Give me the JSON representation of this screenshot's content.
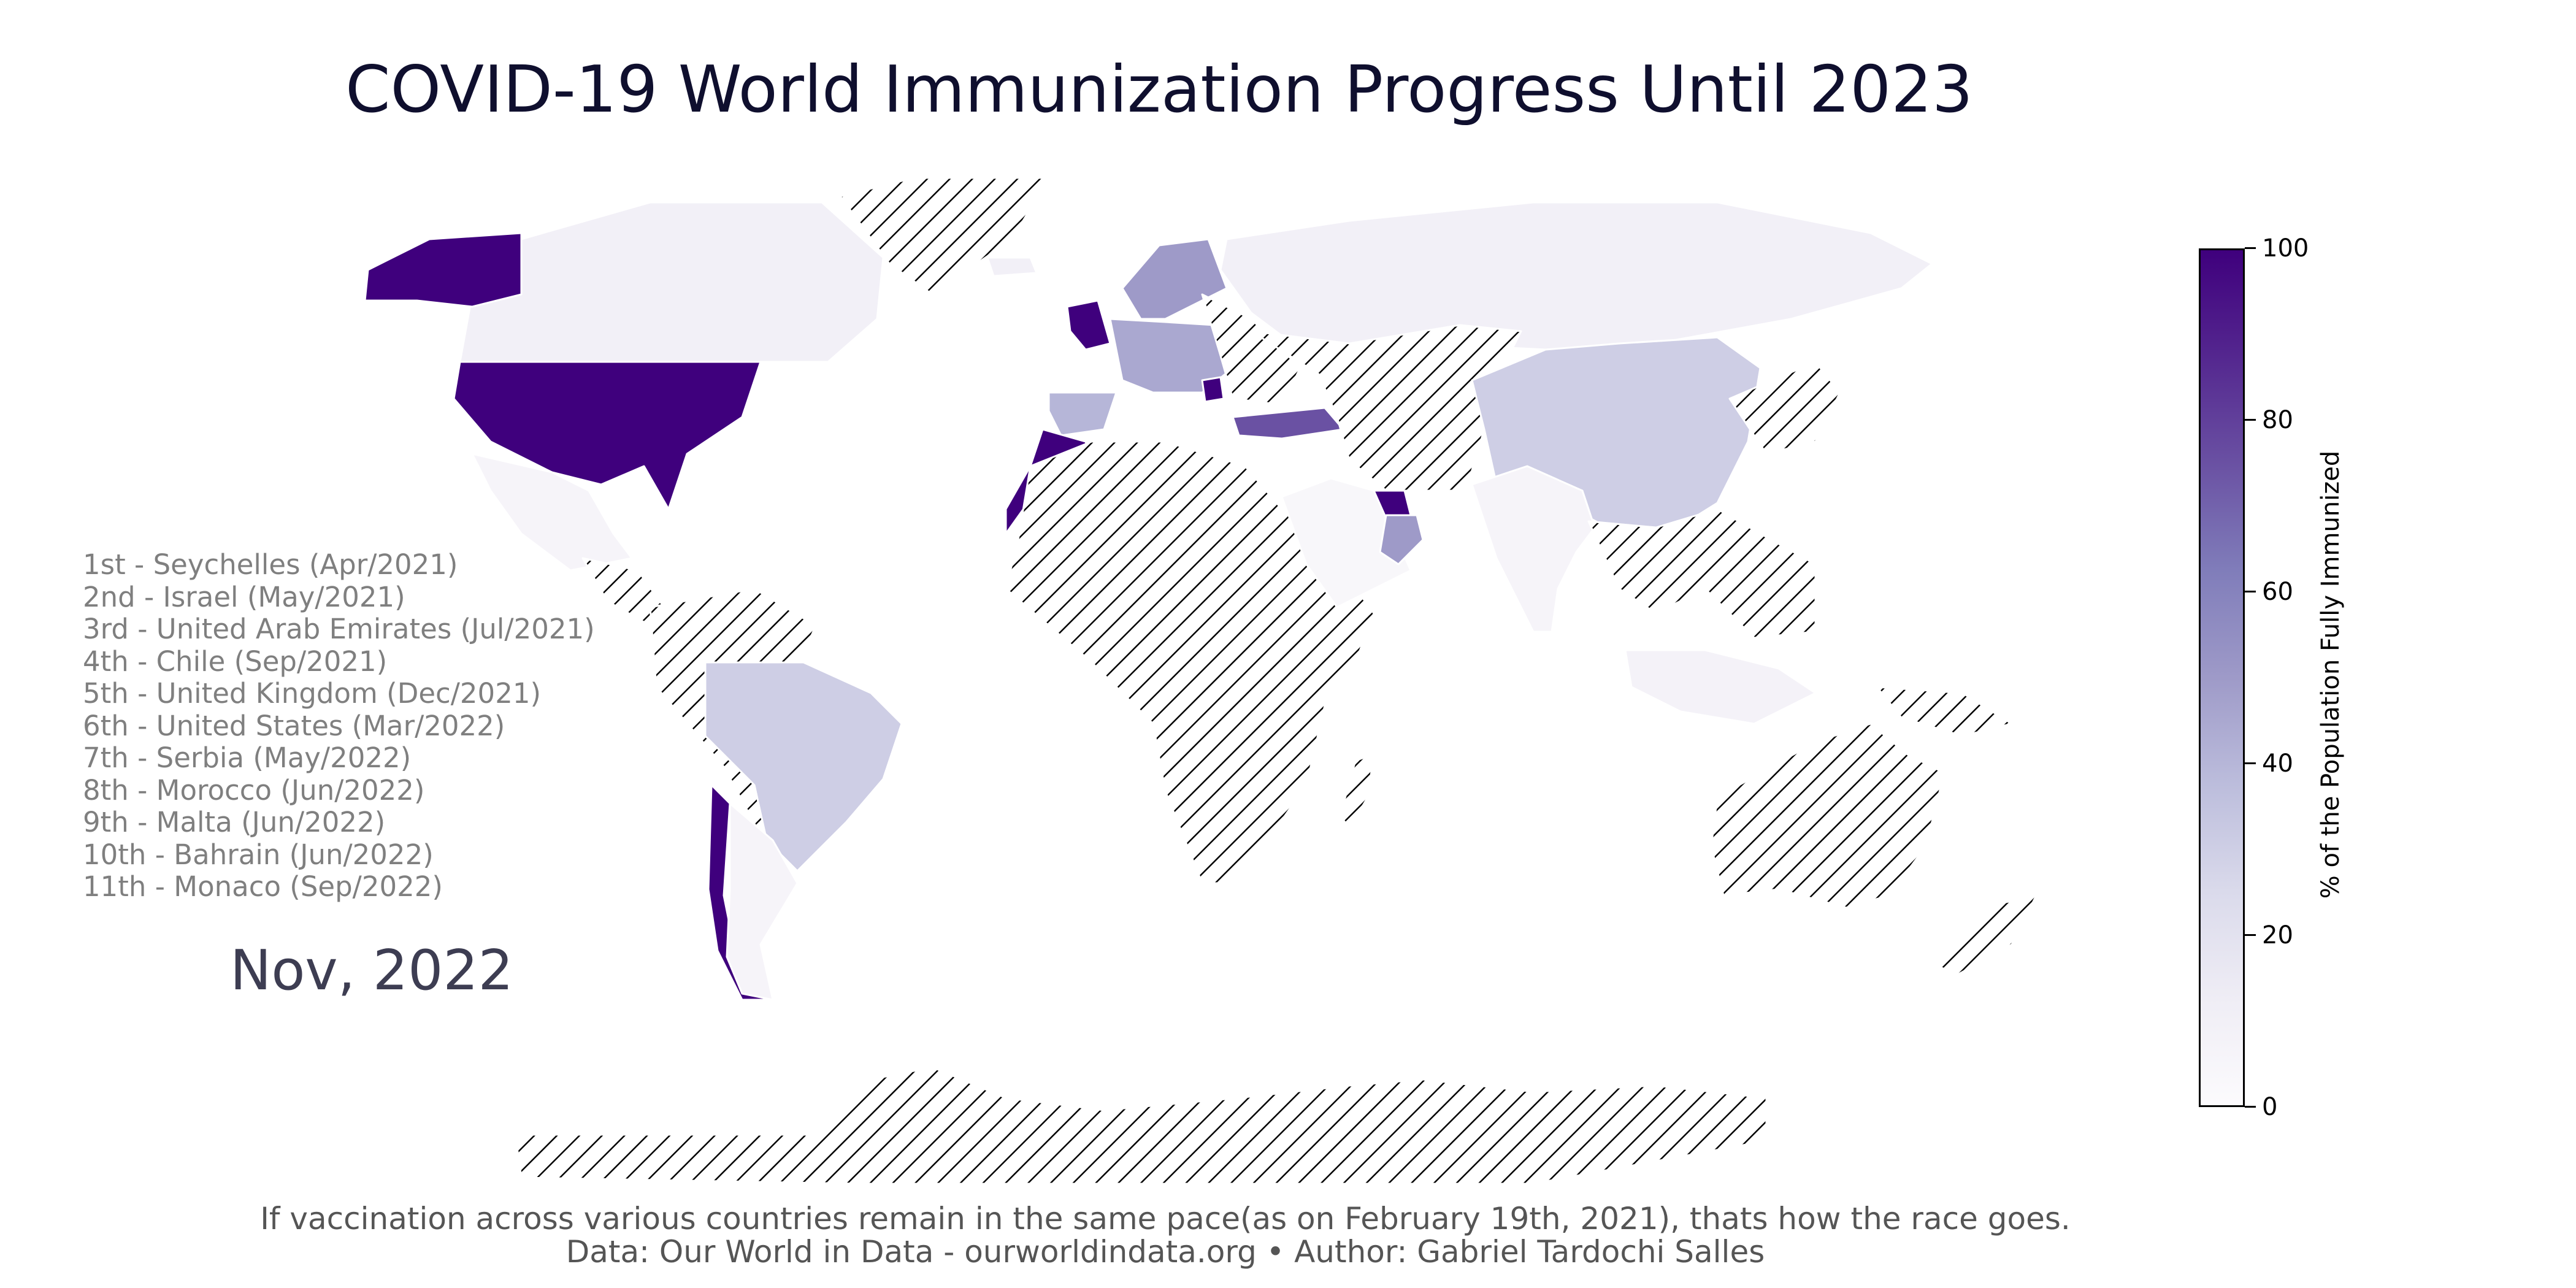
{
  "title": "COVID-19 World Immunization Progress Until 2023",
  "ranking": [
    "1st - Seychelles (Apr/2021)",
    "2nd - Israel (May/2021)",
    "3rd - United Arab Emirates (Jul/2021)",
    "4th - Chile (Sep/2021)",
    "5th - United Kingdom (Dec/2021)",
    "6th - United States (Mar/2022)",
    "7th - Serbia (May/2022)",
    "8th - Morocco (Jun/2022)",
    "9th - Malta (Jun/2022)",
    "10th - Bahrain (Jun/2022)",
    "11th - Monaco (Sep/2022)"
  ],
  "date_label": "Nov, 2022",
  "colorbar": {
    "label": "% of the Population Fully Immunized",
    "ticks": [
      "0",
      "20",
      "40",
      "60",
      "80",
      "100"
    ],
    "min": 0,
    "max": 100,
    "colormap": [
      "#fcfbfd",
      "#efedf5",
      "#dadaeb",
      "#bcbddc",
      "#9e9ac8",
      "#807dba",
      "#6a51a3",
      "#54278f",
      "#3f007d"
    ]
  },
  "footer": {
    "line1": "If vaccination across various countries remain in the same pace(as on February 19th, 2021), thats how the race goes.",
    "line2": "Data: Our World in Data - ourworldindata.org • Author: Gabriel Tardochi Salles"
  },
  "map": {
    "no_data_pattern": "diagonal-hatch",
    "regions": [
      {
        "name": "North America (north)",
        "value": 10
      },
      {
        "name": "Alaska",
        "value": 100
      },
      {
        "name": "United States",
        "value": 100
      },
      {
        "name": "Mexico",
        "value": 6
      },
      {
        "name": "Central America",
        "value": null
      },
      {
        "name": "Northwest South America",
        "value": null
      },
      {
        "name": "Brazil",
        "value": 30
      },
      {
        "name": "Chile",
        "value": 100
      },
      {
        "name": "Argentina",
        "value": 6
      },
      {
        "name": "Greenland",
        "value": null
      },
      {
        "name": "Iceland",
        "value": 10
      },
      {
        "name": "United Kingdom",
        "value": 100
      },
      {
        "name": "Scandinavia",
        "value": 50
      },
      {
        "name": "Central Europe",
        "value": 45
      },
      {
        "name": "Iberia",
        "value": 40
      },
      {
        "name": "Eastern Europe",
        "value": null
      },
      {
        "name": "Serbia",
        "value": 100
      },
      {
        "name": "Turkey",
        "value": 75
      },
      {
        "name": "Morocco",
        "value": 100
      },
      {
        "name": "Africa",
        "value": null
      },
      {
        "name": "Madagascar",
        "value": null
      },
      {
        "name": "Russia",
        "value": 10
      },
      {
        "name": "Central Asia",
        "value": null
      },
      {
        "name": "China",
        "value": 30
      },
      {
        "name": "Japan and Korea",
        "value": null
      },
      {
        "name": "India",
        "value": 6
      },
      {
        "name": "Arabian Peninsula",
        "value": 4
      },
      {
        "name": "United Arab Emirates",
        "value": 100
      },
      {
        "name": "Oman",
        "value": 50
      },
      {
        "name": "Southeast Asia",
        "value": null
      },
      {
        "name": "Indonesia",
        "value": 8
      },
      {
        "name": "Papua New Guinea",
        "value": null
      },
      {
        "name": "Australia",
        "value": null
      },
      {
        "name": "New Zealand",
        "value": null
      },
      {
        "name": "Antarctica",
        "value": null
      }
    ]
  }
}
